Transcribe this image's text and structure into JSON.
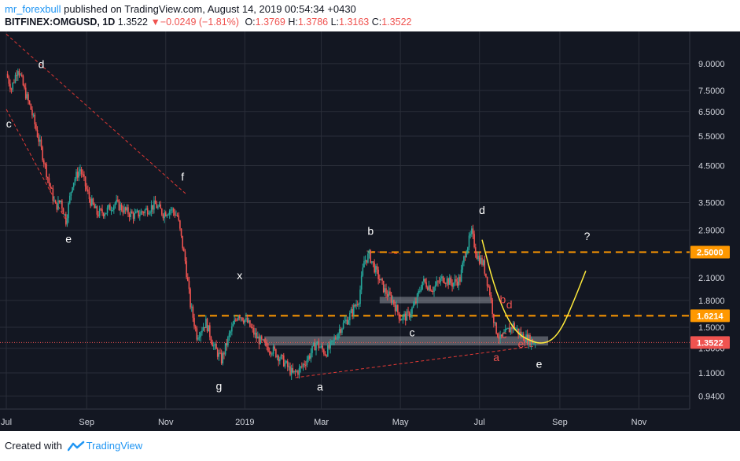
{
  "header": {
    "author": "mr_forexbull",
    "published_text": "published on TradingView.com, August 14, 2019 00:54:34 +0430",
    "symbol": "BITFINEX:OMGUSD, 1D",
    "price": "1.3522",
    "change": "−0.0249 (−1.81%)",
    "o_label": "O:",
    "o_value": "1.3769",
    "h_label": "H:",
    "h_value": "1.3786",
    "l_label": "L:",
    "l_value": "1.3163",
    "c_label": "C:",
    "c_value": "1.3522"
  },
  "footer": {
    "created_with": "Created with",
    "brand": "TradingView"
  },
  "colors": {
    "up": "#26a69a",
    "down": "#ef5350",
    "orange": "#ff9800",
    "yellow": "#ffeb3b",
    "background": "#131722",
    "grid": "#2a2e39",
    "axis_text": "#d1d4dc",
    "dashed_red": "#e53935"
  },
  "chart_data": {
    "type": "candlestick",
    "y_scale": "log",
    "ylim": [
      0.86,
      11.2
    ],
    "y_ticks": [
      {
        "v": 9.0,
        "label": "9.0000"
      },
      {
        "v": 7.5,
        "label": "7.5000"
      },
      {
        "v": 6.5,
        "label": "6.5000"
      },
      {
        "v": 5.5,
        "label": "5.5000"
      },
      {
        "v": 4.5,
        "label": "4.5000"
      },
      {
        "v": 3.5,
        "label": "3.5000"
      },
      {
        "v": 2.9,
        "label": "2.9000"
      },
      {
        "v": 2.1,
        "label": "2.1000"
      },
      {
        "v": 1.8,
        "label": "1.8000"
      },
      {
        "v": 1.5,
        "label": "1.5000"
      },
      {
        "v": 1.3,
        "label": "1.3000"
      },
      {
        "v": 1.1,
        "label": "1.1000"
      },
      {
        "v": 0.94,
        "label": "0.9400"
      }
    ],
    "x_ticks": [
      {
        "date": "2018-07-01",
        "label": "Jul"
      },
      {
        "date": "2018-09-01",
        "label": "Sep"
      },
      {
        "date": "2018-11-01",
        "label": "Nov"
      },
      {
        "date": "2019-01-01",
        "label": "2019"
      },
      {
        "date": "2019-03-01",
        "label": "Mar"
      },
      {
        "date": "2019-05-01",
        "label": "May"
      },
      {
        "date": "2019-07-01",
        "label": "Jul"
      },
      {
        "date": "2019-09-01",
        "label": "Sep"
      },
      {
        "date": "2019-11-01",
        "label": "Nov"
      }
    ],
    "x_range": [
      "2018-07-01",
      "2019-12-15"
    ],
    "last_date": "2019-08-13",
    "price_path": [
      [
        "2018-07-01",
        8.4
      ],
      [
        "2018-07-05",
        7.6
      ],
      [
        "2018-07-10",
        8.8
      ],
      [
        "2018-07-15",
        7.5
      ],
      [
        "2018-07-20",
        6.6
      ],
      [
        "2018-07-27",
        5.2
      ],
      [
        "2018-08-03",
        4.0
      ],
      [
        "2018-08-08",
        3.4
      ],
      [
        "2018-08-12",
        3.55
      ],
      [
        "2018-08-16",
        3.1
      ],
      [
        "2018-08-21",
        4.0
      ],
      [
        "2018-08-27",
        4.4
      ],
      [
        "2018-09-03",
        3.6
      ],
      [
        "2018-09-09",
        3.25
      ],
      [
        "2018-09-16",
        3.3
      ],
      [
        "2018-09-23",
        3.5
      ],
      [
        "2018-10-01",
        3.3
      ],
      [
        "2018-10-08",
        3.2
      ],
      [
        "2018-10-15",
        3.3
      ],
      [
        "2018-10-24",
        3.45
      ],
      [
        "2018-10-30",
        3.25
      ],
      [
        "2018-11-05",
        3.35
      ],
      [
        "2018-11-10",
        3.2
      ],
      [
        "2018-11-16",
        2.35
      ],
      [
        "2018-11-20",
        1.75
      ],
      [
        "2018-11-25",
        1.42
      ],
      [
        "2018-12-02",
        1.55
      ],
      [
        "2018-12-08",
        1.32
      ],
      [
        "2018-12-14",
        1.2
      ],
      [
        "2018-12-20",
        1.42
      ],
      [
        "2018-12-27",
        1.65
      ],
      [
        "2019-01-03",
        1.55
      ],
      [
        "2019-01-10",
        1.4
      ],
      [
        "2019-01-16",
        1.33
      ],
      [
        "2019-01-23",
        1.28
      ],
      [
        "2019-01-30",
        1.2
      ],
      [
        "2019-02-07",
        1.09
      ],
      [
        "2019-02-12",
        1.12
      ],
      [
        "2019-02-20",
        1.24
      ],
      [
        "2019-02-25",
        1.35
      ],
      [
        "2019-03-04",
        1.26
      ],
      [
        "2019-03-09",
        1.33
      ],
      [
        "2019-03-15",
        1.48
      ],
      [
        "2019-03-22",
        1.6
      ],
      [
        "2019-03-30",
        1.82
      ],
      [
        "2019-04-03",
        2.35
      ],
      [
        "2019-04-07",
        2.45
      ],
      [
        "2019-04-12",
        2.2
      ],
      [
        "2019-04-19",
        1.92
      ],
      [
        "2019-04-25",
        1.8
      ],
      [
        "2019-05-01",
        1.6
      ],
      [
        "2019-05-07",
        1.62
      ],
      [
        "2019-05-13",
        1.78
      ],
      [
        "2019-05-18",
        2.05
      ],
      [
        "2019-05-26",
        1.95
      ],
      [
        "2019-06-03",
        2.1
      ],
      [
        "2019-06-10",
        2.02
      ],
      [
        "2019-06-16",
        2.08
      ],
      [
        "2019-06-20",
        2.5
      ],
      [
        "2019-06-25",
        2.85
      ],
      [
        "2019-06-29",
        2.45
      ],
      [
        "2019-07-04",
        2.3
      ],
      [
        "2019-07-09",
        1.9
      ],
      [
        "2019-07-13",
        1.5
      ],
      [
        "2019-07-17",
        1.38
      ],
      [
        "2019-07-22",
        1.45
      ],
      [
        "2019-07-27",
        1.52
      ],
      [
        "2019-08-02",
        1.42
      ],
      [
        "2019-08-08",
        1.38
      ],
      [
        "2019-08-13",
        1.3522
      ]
    ],
    "levels": [
      {
        "value": 2.5,
        "label": "2.5000",
        "style": "orange-dashed",
        "from": "2019-04-06"
      },
      {
        "value": 1.6214,
        "label": "1.6214",
        "style": "orange-dashed",
        "from": "2018-11-26"
      },
      {
        "value": 1.3522,
        "label": "1.3522",
        "style": "price-line",
        "from": "2018-07-01"
      }
    ],
    "zones": [
      {
        "from": "2019-01-16",
        "to": "2019-08-23",
        "low": 1.325,
        "high": 1.41
      },
      {
        "from": "2019-04-15",
        "to": "2019-07-10",
        "low": 1.765,
        "high": 1.845
      }
    ],
    "trendlines": [
      {
        "points": [
          [
            "2018-07-01",
            11.0
          ],
          [
            "2018-11-17",
            3.7
          ]
        ]
      },
      {
        "points": [
          [
            "2018-07-01",
            6.6
          ],
          [
            "2018-08-17",
            3.05
          ]
        ]
      },
      {
        "points": [
          [
            "2019-02-09",
            1.065
          ],
          [
            "2019-08-13",
            1.32
          ]
        ]
      },
      {
        "points": [
          [
            "2019-04-05",
            2.52
          ],
          [
            "2019-05-01",
            2.47
          ]
        ]
      }
    ],
    "projection": {
      "color": "yellow",
      "points": [
        [
          "2019-07-03",
          2.72
        ],
        [
          "2019-07-12",
          2.0
        ],
        [
          "2019-07-22",
          1.6
        ],
        [
          "2019-07-31",
          1.43
        ],
        [
          "2019-08-09",
          1.37
        ],
        [
          "2019-08-17",
          1.34
        ],
        [
          "2019-08-26",
          1.37
        ],
        [
          "2019-09-03",
          1.5
        ],
        [
          "2019-09-12",
          1.8
        ],
        [
          "2019-09-21",
          2.2
        ]
      ]
    },
    "annotations": [
      {
        "text": "d",
        "date": "2018-07-28",
        "value": 8.9,
        "color": "white"
      },
      {
        "text": "c",
        "date": "2018-07-03",
        "value": 5.95,
        "color": "white"
      },
      {
        "text": "e",
        "date": "2018-08-18",
        "value": 2.72,
        "color": "white"
      },
      {
        "text": "f",
        "date": "2018-11-14",
        "value": 4.15,
        "color": "white"
      },
      {
        "text": "x",
        "date": "2018-12-28",
        "value": 2.12,
        "color": "white"
      },
      {
        "text": "g",
        "date": "2018-12-12",
        "value": 1.0,
        "color": "white"
      },
      {
        "text": "a",
        "date": "2019-02-28",
        "value": 0.995,
        "color": "white"
      },
      {
        "text": "b",
        "date": "2019-04-08",
        "value": 2.87,
        "color": "white"
      },
      {
        "text": "c",
        "date": "2019-05-10",
        "value": 1.44,
        "color": "white"
      },
      {
        "text": "d",
        "date": "2019-07-03",
        "value": 3.3,
        "color": "white"
      },
      {
        "text": "?",
        "date": "2019-09-22",
        "value": 2.77,
        "color": "white"
      },
      {
        "text": "e",
        "date": "2019-08-16",
        "value": 1.16,
        "color": "white"
      },
      {
        "text": "a",
        "date": "2019-07-14",
        "value": 1.215,
        "color": "red"
      },
      {
        "text": "b",
        "date": "2019-07-19",
        "value": 1.8,
        "color": "red"
      },
      {
        "text": "c",
        "date": "2019-07-20",
        "value": 1.42,
        "color": "red"
      },
      {
        "text": "d",
        "date": "2019-07-24",
        "value": 1.74,
        "color": "red"
      },
      {
        "text": "e",
        "date": "2019-08-02",
        "value": 1.33,
        "color": "red"
      }
    ]
  }
}
